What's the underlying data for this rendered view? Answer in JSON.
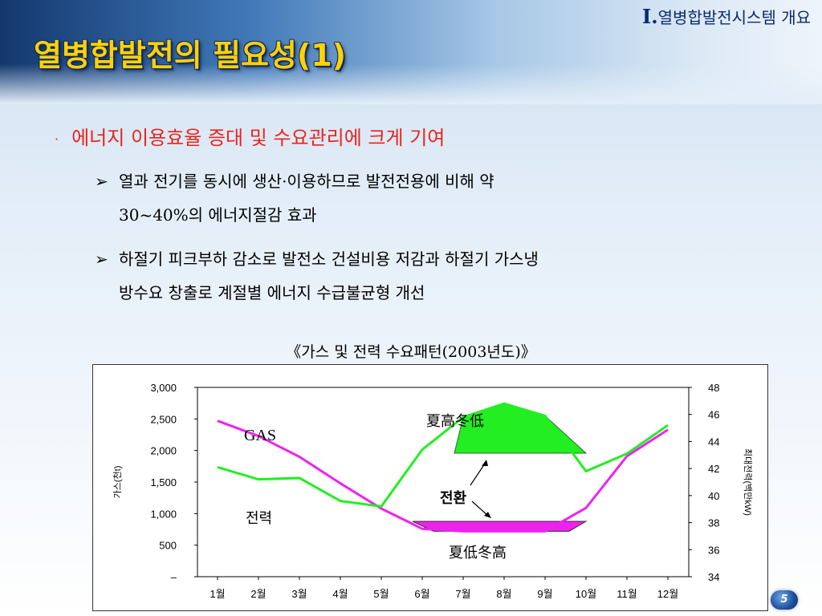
{
  "header": {
    "section_roman": "I.",
    "section_label": "열병합발전시스템 개요",
    "title": "열병합발전의 필요성(1)"
  },
  "content": {
    "main_bullet_glyph": "·",
    "main_bullet": "에너지 이용효율 증대 및 수요관리에 크게 기여",
    "sub_arrow": "➢",
    "sub_bullets": [
      {
        "line1": "열과 전기를 동시에 생산·이용하므로 발전전용에 비해 약",
        "line2": "30~40%의 에너지절감 효과"
      },
      {
        "line1": "하절기 피크부하 감소로 발전소 건설비용 저감과 하절기 가스냉",
        "line2": "방수요 창출로 계절별 에너지 수급불균형 개선"
      }
    ]
  },
  "chart_caption": "《가스 및 전력 수요패턴(2003년도)》",
  "page_number": "5",
  "colors": {
    "gas_series": "#ee22ee",
    "power_series": "#22ee22",
    "title_yellow": "#ffd200",
    "bullet_red": "#e8251b"
  },
  "chart_data": {
    "type": "line",
    "categories": [
      "1월",
      "2월",
      "3월",
      "4월",
      "5월",
      "6월",
      "7월",
      "8월",
      "9월",
      "10월",
      "11월",
      "12월"
    ],
    "y_left": {
      "label": "가스(천t)",
      "min": 0,
      "max": 3000,
      "ticks": [
        "3,000",
        "2,500",
        "2,000",
        "1,500",
        "1,000",
        "500",
        "–"
      ]
    },
    "y_right": {
      "label": "최대전력(백만kW)",
      "min": 34,
      "max": 48,
      "ticks": [
        "48",
        "46",
        "44",
        "42",
        "40",
        "38",
        "36",
        "34"
      ]
    },
    "series": [
      {
        "name": "GAS",
        "axis": "left",
        "label": "GAS",
        "values": [
          2470,
          2230,
          1900,
          1480,
          1080,
          760,
          720,
          720,
          720,
          1090,
          1910,
          2330
        ]
      },
      {
        "name": "전력",
        "axis": "right",
        "label": "전력",
        "values": [
          42.1,
          41.2,
          41.3,
          39.6,
          39.2,
          43.4,
          45.8,
          46.8,
          45.9,
          41.8,
          43.1,
          45.2
        ]
      }
    ],
    "annotations": {
      "summer": "夏高冬低",
      "winter": "夏低冬高",
      "switch": "전환"
    },
    "grid": false
  }
}
